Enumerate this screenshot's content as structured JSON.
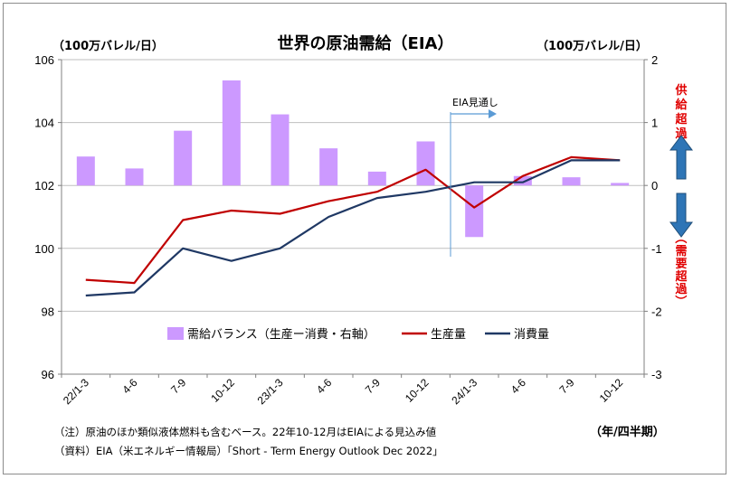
{
  "chart_data": {
    "type": "bar+line",
    "title": "世界の原油需給（EIA）",
    "left_unit": "（100万バレル/日）",
    "right_unit": "（100万バレル/日）",
    "x_unit": "（年/四半期）",
    "categories": [
      "22/1-3",
      "4-6",
      "7-9",
      "10-12",
      "23/1-3",
      "4-6",
      "7-9",
      "10-12",
      "24/1-3",
      "4-6",
      "7-9",
      "10-12"
    ],
    "ylim_left": [
      96,
      106
    ],
    "yticks_left": [
      "106",
      "104",
      "102",
      "100",
      "98",
      "96"
    ],
    "ylim_right": [
      -3,
      2
    ],
    "yticks_right": [
      "2",
      "1",
      "0",
      "-1",
      "-2",
      "-3"
    ],
    "bars": {
      "name": "需給バランス（生産ー消費・右軸）",
      "axis": "right",
      "color": "#cc99ff",
      "values": [
        0.46,
        0.27,
        0.87,
        1.67,
        1.13,
        0.59,
        0.22,
        0.7,
        -0.82,
        0.15,
        0.13,
        0.04
      ]
    },
    "series": [
      {
        "name": "生産量",
        "color": "#c00000",
        "axis": "left",
        "values": [
          99.0,
          98.9,
          100.9,
          101.2,
          101.1,
          101.5,
          101.8,
          102.5,
          101.3,
          102.3,
          102.9,
          102.8
        ]
      },
      {
        "name": "消費量",
        "color": "#1f3864",
        "axis": "left",
        "values": [
          98.5,
          98.6,
          100.0,
          99.6,
          100.0,
          101.0,
          101.6,
          101.8,
          102.1,
          102.1,
          102.8,
          102.8
        ]
      }
    ],
    "annotation_forecast": "EIA見通し",
    "supply_excess": "供給超過",
    "demand_excess": "（需要超過）",
    "grid": "horizontal"
  },
  "notes": {
    "note1": "（注）原油のほか類似液体燃料も含むベース。22年10-12月はEIAによる見込み値",
    "note2": "（資料）EIA（米エネルギー情報局）「Short - Term Energy Outlook Dec 2022」"
  }
}
